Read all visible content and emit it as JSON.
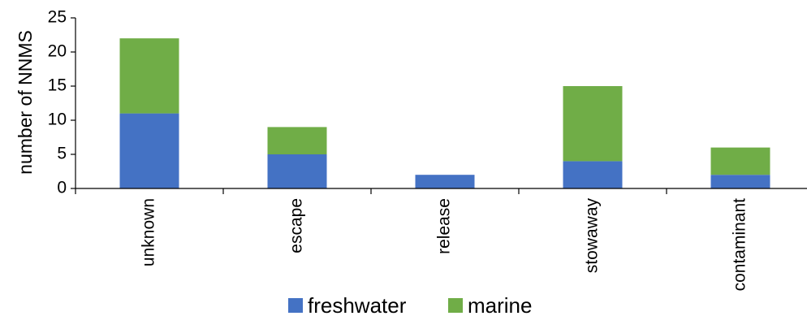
{
  "chart_data": {
    "type": "bar",
    "stacked": true,
    "categories": [
      "unknown",
      "escape",
      "release",
      "stowaway",
      "contaminant"
    ],
    "series": [
      {
        "name": "freshwater",
        "values": [
          11,
          5,
          2,
          4,
          2
        ],
        "color": "#4472C4"
      },
      {
        "name": "marine",
        "values": [
          11,
          4,
          0,
          11,
          4
        ],
        "color": "#70AD47"
      }
    ],
    "ylabel": "number of NNMS",
    "xlabel": "",
    "ylim": [
      0,
      25
    ],
    "yticks": [
      0,
      5,
      10,
      15,
      20,
      25
    ],
    "grid": false,
    "legend_position": "bottom"
  }
}
